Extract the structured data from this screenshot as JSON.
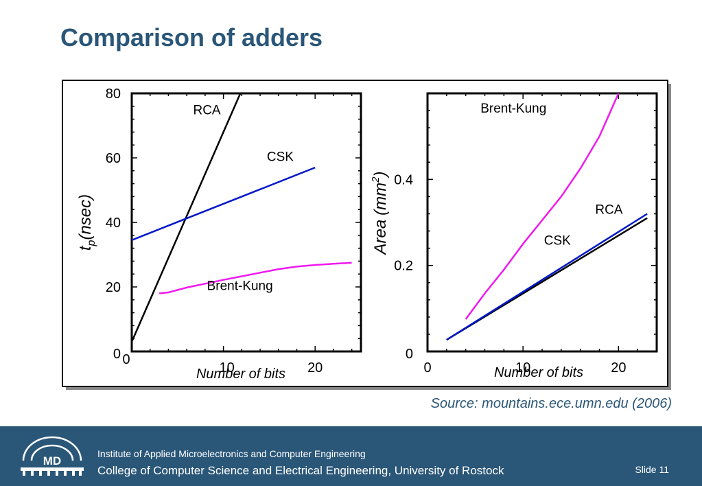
{
  "slide": {
    "title": "Comparison of adders",
    "source": "Source: mountains.ece.umn.edu (2006)",
    "slide_label": "Slide 11"
  },
  "footer": {
    "institute": "Institute of Applied Microelectronics and Computer Engineering",
    "college": "College of Computer Science and Electrical Engineering, University of Rostock",
    "logo_text": "MD"
  },
  "colors": {
    "title": "#2a5678",
    "footer_bg": "#2a5678",
    "rca": "#000000",
    "csk": "#0018c8",
    "brent_kung": "#f018f0"
  },
  "chart_data": [
    {
      "type": "line",
      "ylabel": "t",
      "ylabel_sub": "p",
      "ylabel_rest": "(nsec)",
      "xlabel": "Number of bits",
      "xlim": [
        0,
        25
      ],
      "ylim": [
        0,
        80
      ],
      "xticks": [
        0,
        10,
        20
      ],
      "yticks": [
        0,
        20,
        40,
        60,
        80
      ],
      "series": [
        {
          "name": "RCA",
          "color": "#000000",
          "x": [
            0,
            12
          ],
          "y": [
            3,
            81
          ]
        },
        {
          "name": "CSK",
          "color": "#0018c8",
          "x": [
            0,
            20
          ],
          "y": [
            34.5,
            57
          ]
        },
        {
          "name": "Brent-Kung",
          "color": "#f018f0",
          "x": [
            3,
            4,
            6,
            8,
            10,
            12,
            14,
            16,
            18,
            20,
            22,
            24
          ],
          "y": [
            18,
            18.3,
            19.8,
            21,
            22.2,
            23.3,
            24.4,
            25.5,
            26.3,
            26.8,
            27.2,
            27.5
          ]
        }
      ],
      "labels": [
        {
          "text": "RCA",
          "x": 8.2,
          "y": 73.5
        },
        {
          "text": "CSK",
          "x": 16.2,
          "y": 59
        },
        {
          "text": "Brent-Kung",
          "x": 11.8,
          "y": 19
        }
      ]
    },
    {
      "type": "line",
      "ylabel": "Area",
      "ylabel_rest": "(mm",
      "ylabel_sup": "2",
      "ylabel_close": ")",
      "xlabel": "Number of bits",
      "xlim": [
        0,
        24
      ],
      "ylim": [
        0,
        0.6
      ],
      "xticks": [
        0,
        10,
        20
      ],
      "yticks": [
        0,
        0.2,
        0.4
      ],
      "series": [
        {
          "name": "Brent-Kung",
          "color": "#f018f0",
          "x": [
            4,
            6,
            8,
            10,
            12,
            14,
            16,
            18,
            20
          ],
          "y": [
            0.075,
            0.135,
            0.19,
            0.25,
            0.305,
            0.36,
            0.425,
            0.5,
            0.6
          ]
        },
        {
          "name": "RCA",
          "color": "#000000",
          "x": [
            2,
            23
          ],
          "y": [
            0.027,
            0.31
          ]
        },
        {
          "name": "CSK",
          "color": "#0018c8",
          "x": [
            2,
            23
          ],
          "y": [
            0.027,
            0.32
          ]
        }
      ],
      "labels": [
        {
          "text": "Brent-Kung",
          "x": 9.0,
          "y": 0.555
        },
        {
          "text": "RCA",
          "x": 19.0,
          "y": 0.32
        },
        {
          "text": "CSK",
          "x": 13.6,
          "y": 0.248
        }
      ]
    }
  ]
}
